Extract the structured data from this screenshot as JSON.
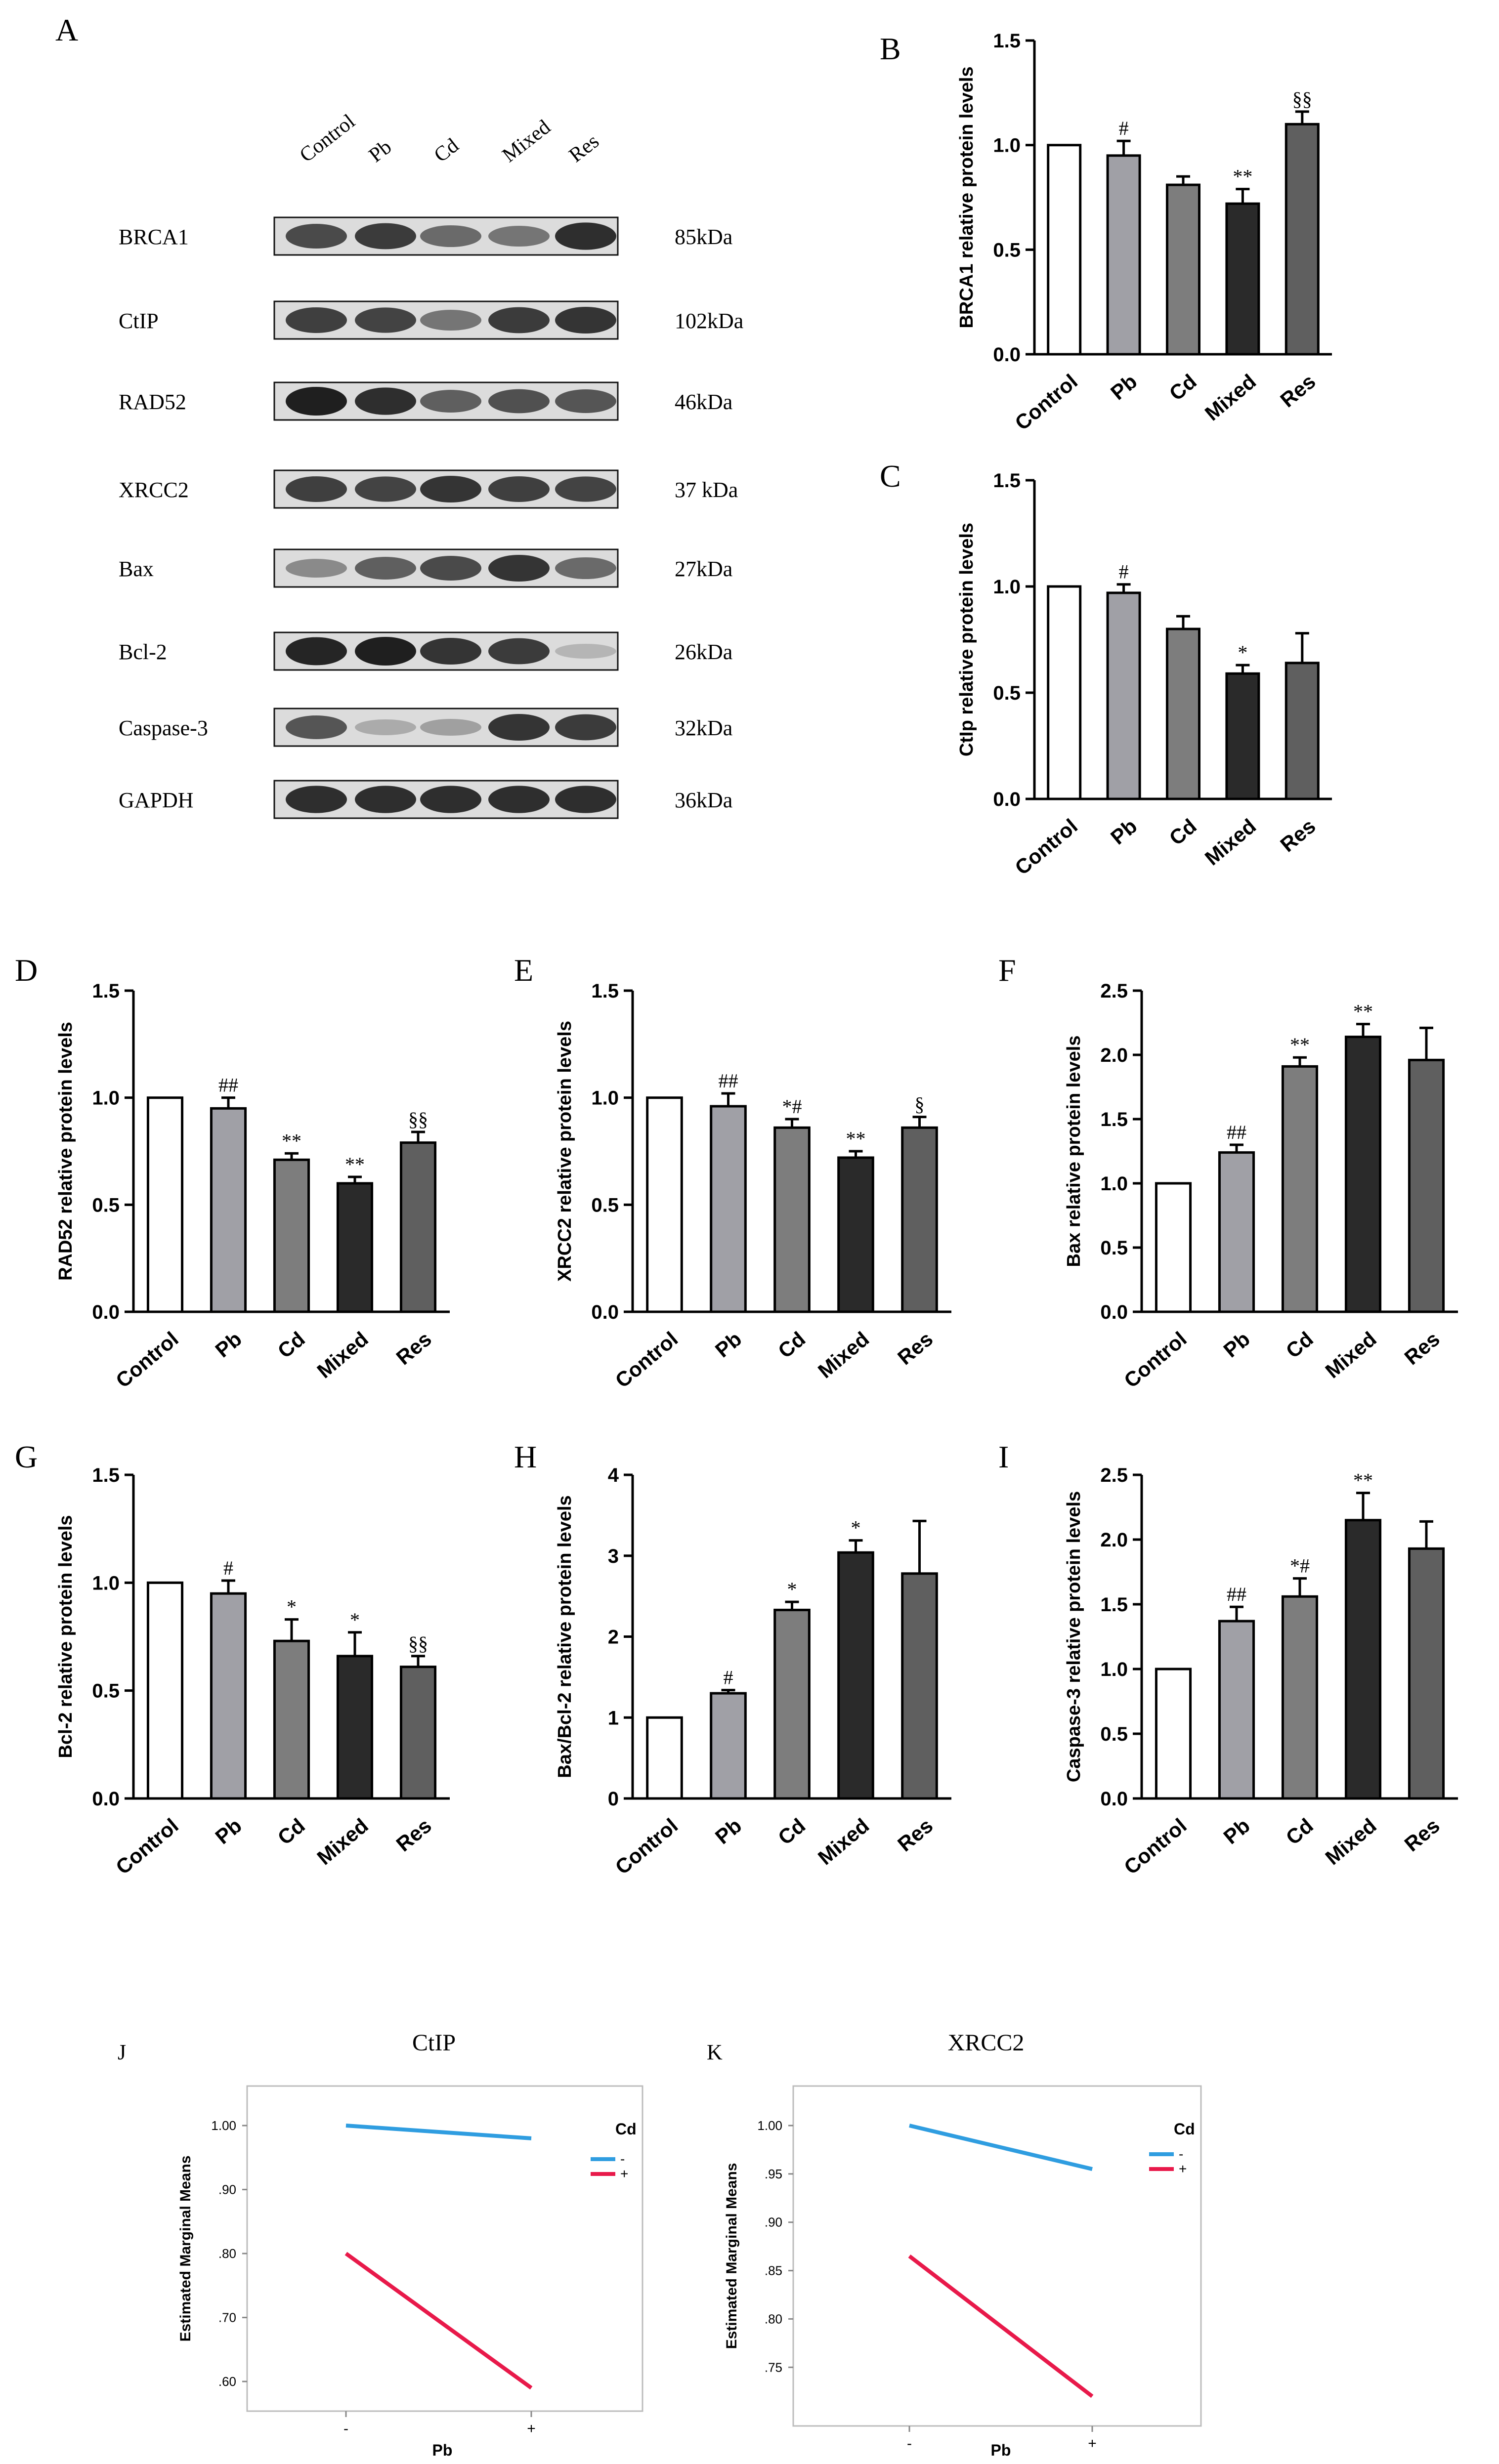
{
  "blot": {
    "panel_letter": "A",
    "lanes": [
      "Control",
      "Pb",
      "Cd",
      "Mixed",
      "Res"
    ],
    "rows": [
      {
        "protein": "BRCA1",
        "size": "85kDa",
        "intensity": [
          0.75,
          0.82,
          0.6,
          0.55,
          0.88
        ]
      },
      {
        "protein": "CtIP",
        "size": "102kDa",
        "intensity": [
          0.8,
          0.78,
          0.55,
          0.82,
          0.85
        ]
      },
      {
        "protein": "RAD52",
        "size": "46kDa",
        "intensity": [
          0.95,
          0.88,
          0.65,
          0.72,
          0.7
        ]
      },
      {
        "protein": "XRCC2",
        "size": "37 kDa",
        "intensity": [
          0.8,
          0.78,
          0.85,
          0.8,
          0.78
        ]
      },
      {
        "protein": "Bax",
        "size": "27kDa",
        "intensity": [
          0.45,
          0.65,
          0.75,
          0.85,
          0.6
        ]
      },
      {
        "protein": "Bcl-2",
        "size": "26kDa",
        "intensity": [
          0.92,
          0.95,
          0.85,
          0.82,
          0.25
        ]
      },
      {
        "protein": "Caspase-3",
        "size": "32kDa",
        "intensity": [
          0.7,
          0.3,
          0.35,
          0.85,
          0.82
        ]
      },
      {
        "protein": "GAPDH",
        "size": "36kDa",
        "intensity": [
          0.88,
          0.88,
          0.88,
          0.88,
          0.88
        ]
      }
    ]
  },
  "chart_data": [
    {
      "panel": "B",
      "type": "bar",
      "categories": [
        "Control",
        "Pb",
        "Cd",
        "Mixed",
        "Res"
      ],
      "values": [
        1.0,
        0.95,
        0.81,
        0.72,
        1.1
      ],
      "errors": [
        0,
        0.07,
        0.04,
        0.07,
        0.06
      ],
      "annotations": [
        "",
        "#",
        "",
        "**",
        "§§"
      ],
      "ylabel": "BRCA1 relative protein levels",
      "ylim": [
        0,
        1.5
      ],
      "yticks": [
        "0.0",
        "0.5",
        "1.0",
        "1.5"
      ]
    },
    {
      "panel": "C",
      "type": "bar",
      "categories": [
        "Control",
        "Pb",
        "Cd",
        "Mixed",
        "Res"
      ],
      "values": [
        1.0,
        0.97,
        0.8,
        0.59,
        0.64
      ],
      "errors": [
        0,
        0.04,
        0.06,
        0.04,
        0.14
      ],
      "annotations": [
        "",
        "#",
        "",
        "*",
        ""
      ],
      "ylabel": "CtIp relative protein levels",
      "ylim": [
        0,
        1.5
      ],
      "yticks": [
        "0.0",
        "0.5",
        "1.0",
        "1.5"
      ]
    },
    {
      "panel": "D",
      "type": "bar",
      "categories": [
        "Control",
        "Pb",
        "Cd",
        "Mixed",
        "Res"
      ],
      "values": [
        1.0,
        0.95,
        0.71,
        0.6,
        0.79
      ],
      "errors": [
        0,
        0.05,
        0.03,
        0.03,
        0.05
      ],
      "annotations": [
        "",
        "##",
        "**",
        "**",
        "§§"
      ],
      "ylabel": "RAD52 relative protein levels",
      "ylim": [
        0,
        1.5
      ],
      "yticks": [
        "0.0",
        "0.5",
        "1.0",
        "1.5"
      ]
    },
    {
      "panel": "E",
      "type": "bar",
      "categories": [
        "Control",
        "Pb",
        "Cd",
        "Mixed",
        "Res"
      ],
      "values": [
        1.0,
        0.96,
        0.86,
        0.72,
        0.86
      ],
      "errors": [
        0,
        0.06,
        0.04,
        0.03,
        0.05
      ],
      "annotations": [
        "",
        "##",
        "*#",
        "**",
        "§"
      ],
      "ylabel": "XRCC2 relative protein levels",
      "ylim": [
        0,
        1.5
      ],
      "yticks": [
        "0.0",
        "0.5",
        "1.0",
        "1.5"
      ]
    },
    {
      "panel": "F",
      "type": "bar",
      "categories": [
        "Control",
        "Pb",
        "Cd",
        "Mixed",
        "Res"
      ],
      "values": [
        1.0,
        1.24,
        1.91,
        2.14,
        1.96
      ],
      "errors": [
        0,
        0.06,
        0.07,
        0.1,
        0.25
      ],
      "annotations": [
        "",
        "##",
        "**",
        "**",
        ""
      ],
      "ylabel": "Bax relative protein levels",
      "ylim": [
        0,
        2.5
      ],
      "yticks": [
        "0.0",
        "0.5",
        "1.0",
        "1.5",
        "2.0",
        "2.5"
      ]
    },
    {
      "panel": "G",
      "type": "bar",
      "categories": [
        "Control",
        "Pb",
        "Cd",
        "Mixed",
        "Res"
      ],
      "values": [
        1.0,
        0.95,
        0.73,
        0.66,
        0.61
      ],
      "errors": [
        0,
        0.06,
        0.1,
        0.11,
        0.05
      ],
      "annotations": [
        "",
        "#",
        "*",
        "*",
        "§§"
      ],
      "ylabel": "Bcl-2 relative protein levels",
      "ylim": [
        0,
        1.5
      ],
      "yticks": [
        "0.0",
        "0.5",
        "1.0",
        "1.5"
      ]
    },
    {
      "panel": "H",
      "type": "bar",
      "categories": [
        "Control",
        "Pb",
        "Cd",
        "Mixed",
        "Res"
      ],
      "values": [
        1.0,
        1.3,
        2.33,
        3.04,
        2.78
      ],
      "errors": [
        0,
        0.04,
        0.1,
        0.15,
        0.65
      ],
      "annotations": [
        "",
        "#",
        "*",
        "*",
        ""
      ],
      "ylabel": "Bax/Bcl-2 relative protein levels",
      "ylim": [
        0,
        4
      ],
      "yticks": [
        "0",
        "1",
        "2",
        "3",
        "4"
      ]
    },
    {
      "panel": "I",
      "type": "bar",
      "categories": [
        "Control",
        "Pb",
        "Cd",
        "Mixed",
        "Res"
      ],
      "values": [
        1.0,
        1.37,
        1.56,
        2.15,
        1.93
      ],
      "errors": [
        0,
        0.11,
        0.14,
        0.21,
        0.21
      ],
      "annotations": [
        "",
        "##",
        "*#",
        "**",
        ""
      ],
      "ylabel": "Caspase-3 relative protein levels",
      "ylim": [
        0,
        2.5
      ],
      "yticks": [
        "0.0",
        "0.5",
        "1.0",
        "1.5",
        "2.0",
        "2.5"
      ]
    },
    {
      "panel": "J",
      "type": "line",
      "title": "CtIP",
      "x": [
        "-",
        "+"
      ],
      "xlabel": "Pb",
      "ylabel": "Estimated Marginal Means",
      "ylim": [
        0.6,
        1.0
      ],
      "yticks": [
        1.0,
        0.9,
        0.8,
        0.7,
        0.6
      ],
      "ytick_labels": [
        "1.00",
        ".90",
        ".80",
        ".70",
        ".60"
      ],
      "legend_title": "Cd",
      "legend_position": "top-right",
      "series": [
        {
          "name": "-",
          "color": "#2f9de0",
          "values": [
            1.0,
            0.98
          ]
        },
        {
          "name": "+",
          "color": "#e8194a",
          "values": [
            0.8,
            0.59
          ]
        }
      ]
    },
    {
      "panel": "K",
      "type": "line",
      "title": "XRCC2",
      "x": [
        "-",
        "+"
      ],
      "xlabel": "Pb",
      "ylabel": "Estimated Marginal Means",
      "ylim": [
        0.72,
        1.0
      ],
      "yticks": [
        1.0,
        0.95,
        0.9,
        0.85,
        0.8,
        0.75
      ],
      "ytick_labels": [
        "1.00",
        ".95",
        ".90",
        ".85",
        ".80",
        ".75"
      ],
      "legend_title": "Cd",
      "legend_position": "top-right",
      "series": [
        {
          "name": "-",
          "color": "#2f9de0",
          "values": [
            1.0,
            0.955
          ]
        },
        {
          "name": "+",
          "color": "#e8194a",
          "values": [
            0.865,
            0.72
          ]
        }
      ]
    }
  ]
}
